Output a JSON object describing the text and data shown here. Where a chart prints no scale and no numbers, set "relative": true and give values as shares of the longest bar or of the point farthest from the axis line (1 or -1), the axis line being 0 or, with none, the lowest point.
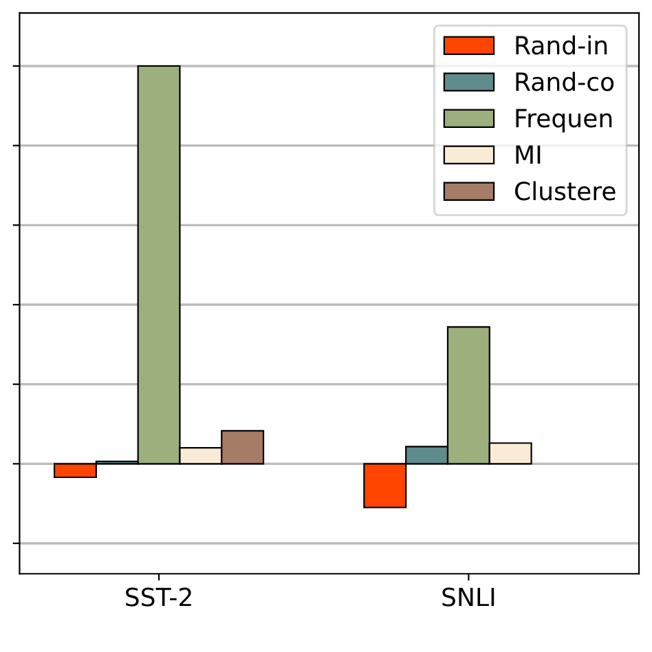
{
  "chart_data": {
    "type": "bar",
    "relative": true,
    "categories": [
      "SST-2",
      "SNLI"
    ],
    "grid": "y",
    "legend": "top right",
    "series": [
      {
        "name": "Rand-in",
        "color": "#ff4500",
        "values": [
          -0.034,
          -0.11
        ]
      },
      {
        "name": "Rand-co",
        "color": "#5f8c8c",
        "values": [
          0.006,
          0.043
        ]
      },
      {
        "name": "Frequen",
        "color": "#9daf7c",
        "values": [
          1.0,
          0.344
        ]
      },
      {
        "name": "MI",
        "color": "#faebd7",
        "values": [
          0.04,
          0.052
        ]
      },
      {
        "name": "Clustere",
        "color": "#a67c66",
        "values": [
          0.083,
          null
        ]
      }
    ]
  }
}
